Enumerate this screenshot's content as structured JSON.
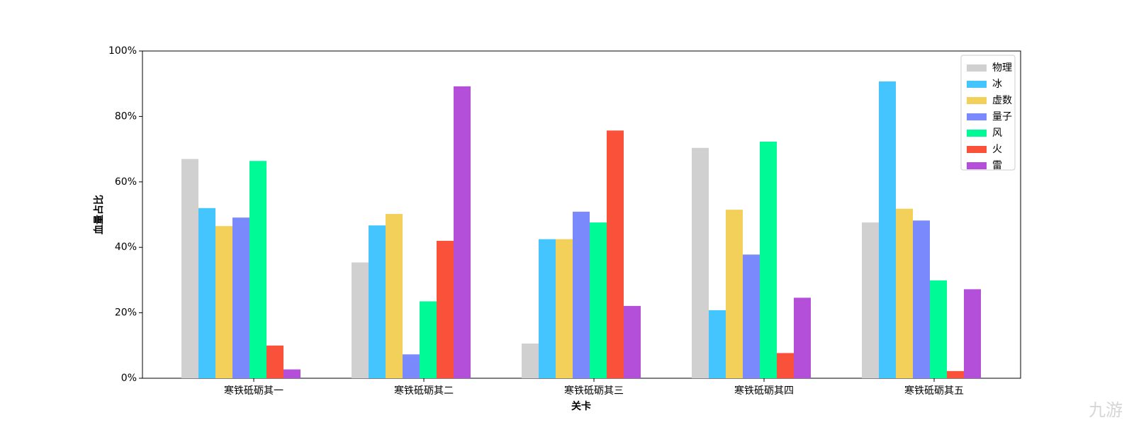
{
  "chart_data": {
    "type": "bar",
    "xlabel": "关卡",
    "ylabel": "血量占比",
    "categories": [
      "寒铁砥砺其一",
      "寒铁砥砺其二",
      "寒铁砥砺其三",
      "寒铁砥砺其四",
      "寒铁砥砺其五"
    ],
    "series": [
      {
        "name": "物理",
        "color": "#d0d0d0",
        "values": [
          67.0,
          35.4,
          10.6,
          70.4,
          47.6
        ]
      },
      {
        "name": "冰",
        "color": "#45c5fd",
        "values": [
          52.0,
          46.7,
          42.5,
          20.8,
          90.7
        ]
      },
      {
        "name": "虚数",
        "color": "#f2d05a",
        "values": [
          46.5,
          50.2,
          42.5,
          51.5,
          51.8
        ]
      },
      {
        "name": "量子",
        "color": "#7a89fc",
        "values": [
          49.1,
          7.3,
          50.9,
          37.8,
          48.2
        ]
      },
      {
        "name": "风",
        "color": "#00fa96",
        "values": [
          66.4,
          23.5,
          47.6,
          72.3,
          29.9
        ]
      },
      {
        "name": "火",
        "color": "#f9513a",
        "values": [
          10.0,
          42.0,
          75.7,
          7.7,
          2.2
        ]
      },
      {
        "name": "雷",
        "color": "#b44fd9",
        "values": [
          2.7,
          89.2,
          22.1,
          24.6,
          27.2
        ]
      }
    ],
    "ylim": [
      0,
      100
    ],
    "yticks": [
      {
        "value": 0,
        "label": "0%"
      },
      {
        "value": 20,
        "label": "20%"
      },
      {
        "value": 40,
        "label": "40%"
      },
      {
        "value": 60,
        "label": "60%"
      },
      {
        "value": 80,
        "label": "80%"
      },
      {
        "value": 100,
        "label": "100%"
      }
    ],
    "legend": "upper right",
    "watermark": "九游"
  }
}
